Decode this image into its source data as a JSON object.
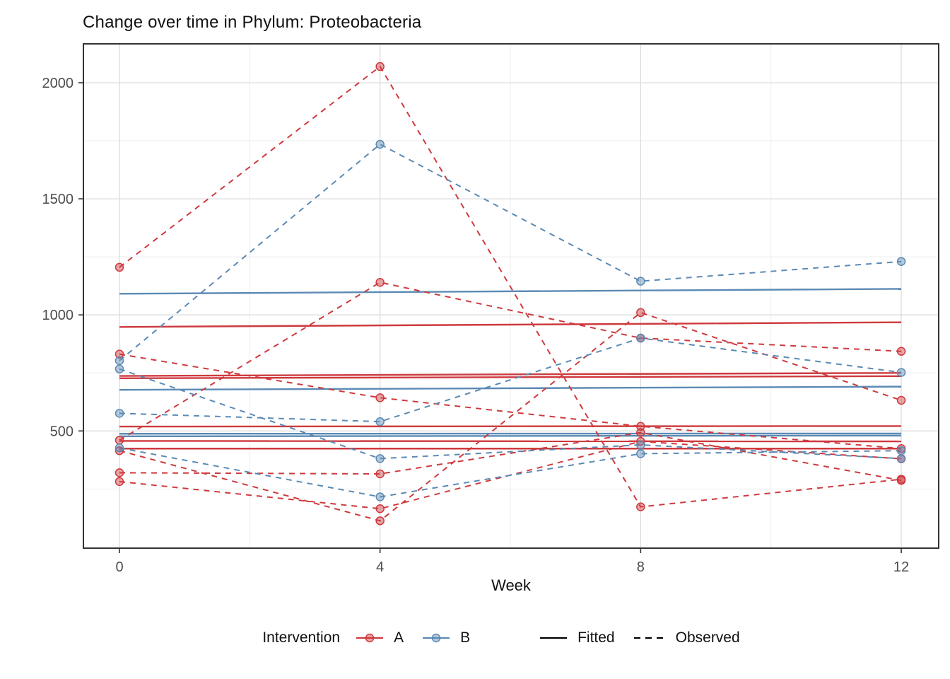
{
  "title": "Change over time in Phylum: Proteobacteria",
  "colors": {
    "A": "#CE3A3E",
    "B": "#5B8AB4",
    "fitted_key": "#000000",
    "observed_key": "#000000",
    "grid_major": "#DCDCDC",
    "grid_minor": "#EDEDED",
    "panel_border": "#333333",
    "tick_text": "#4D4D4D",
    "axis_title": "#111111"
  },
  "legend": {
    "title": "Intervention",
    "group_a_label": "A",
    "group_b_label": "B",
    "fitted_label": "Fitted",
    "observed_label": "Observed"
  },
  "chart_data": {
    "type": "line",
    "title": "Change over time in Phylum: Proteobacteria",
    "xlabel": "Week",
    "ylabel": "",
    "x": [
      0,
      4,
      8,
      12
    ],
    "x_tick_labels": [
      "0",
      "4",
      "8",
      "12"
    ],
    "y_ticks": [
      500,
      1000,
      1500,
      2000
    ],
    "y_tick_labels": [
      "500",
      "1000",
      "1500",
      "2000"
    ],
    "y_minor_ticks": [
      250,
      750,
      1250,
      1750
    ],
    "x_minor_ticks": [
      2,
      6,
      10
    ],
    "xlim": [
      -0.55,
      12.58
    ],
    "ylim": [
      -6,
      2168
    ],
    "grid": true,
    "legend_position": "bottom",
    "observed": [
      {
        "group": "A",
        "values": [
          1205,
          2070,
          173,
          292
        ]
      },
      {
        "group": "A",
        "values": [
          831,
          643,
          520,
          424
        ]
      },
      {
        "group": "A",
        "values": [
          460,
          1140,
          900,
          843
        ]
      },
      {
        "group": "A",
        "values": [
          415,
          113,
          1010,
          632
        ]
      },
      {
        "group": "A",
        "values": [
          320,
          315,
          493,
          287
        ]
      },
      {
        "group": "A",
        "values": [
          282,
          165,
          455,
          380
        ]
      },
      {
        "group": "B",
        "values": [
          803,
          1735,
          1145,
          1230
        ]
      },
      {
        "group": "B",
        "values": [
          767,
          381,
          440,
          381
        ]
      },
      {
        "group": "B",
        "values": [
          576,
          540,
          900,
          752
        ]
      },
      {
        "group": "B",
        "values": [
          427,
          216,
          402,
          415
        ]
      }
    ],
    "fitted": [
      {
        "group": "A",
        "start": 948,
        "end": 968
      },
      {
        "group": "A",
        "start": 737,
        "end": 750
      },
      {
        "group": "A",
        "start": 727,
        "end": 736
      },
      {
        "group": "A",
        "start": 519,
        "end": 521
      },
      {
        "group": "A",
        "start": 457,
        "end": 455
      },
      {
        "group": "A",
        "start": 424,
        "end": 424
      },
      {
        "group": "B",
        "start": 1091,
        "end": 1112
      },
      {
        "group": "B",
        "start": 677,
        "end": 691
      },
      {
        "group": "B",
        "start": 488,
        "end": 489
      },
      {
        "group": "B",
        "start": 477,
        "end": 480
      }
    ]
  }
}
